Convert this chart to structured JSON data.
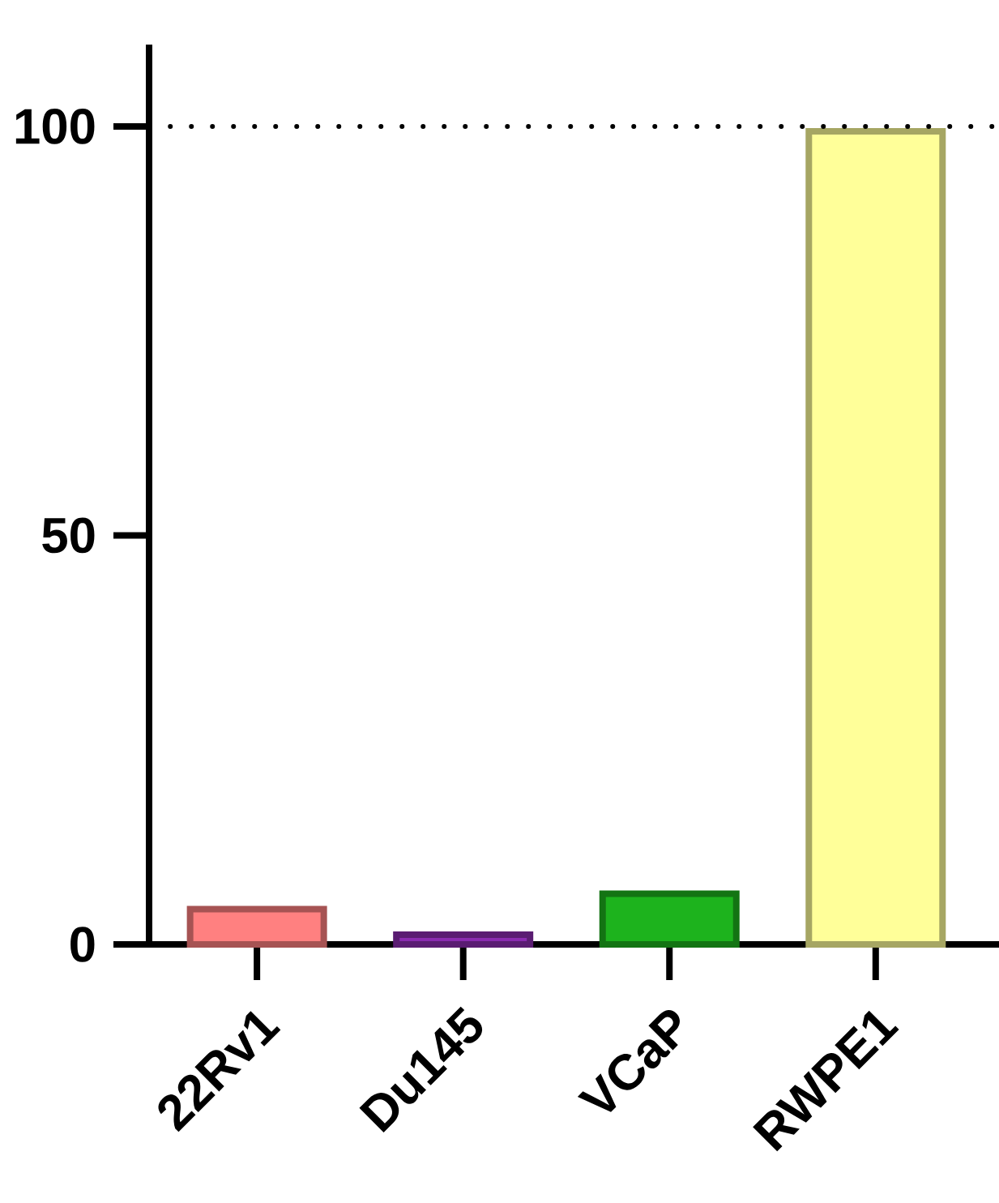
{
  "chart_data": {
    "type": "bar",
    "categories": [
      "22Rv1",
      "Du145",
      "VCaP",
      "RWPE1"
    ],
    "values": [
      4.3,
      1.2,
      6.2,
      99.4
    ],
    "colors": [
      "#ff8080",
      "#8a2bb0",
      "#1db31d",
      "#ffff99"
    ],
    "ylim": [
      0,
      110
    ],
    "yticks": [
      0,
      50,
      100
    ],
    "ref_lines": [
      {
        "axis": "y",
        "value": 100,
        "line_style": "dotted",
        "color": "#000000"
      }
    ]
  }
}
